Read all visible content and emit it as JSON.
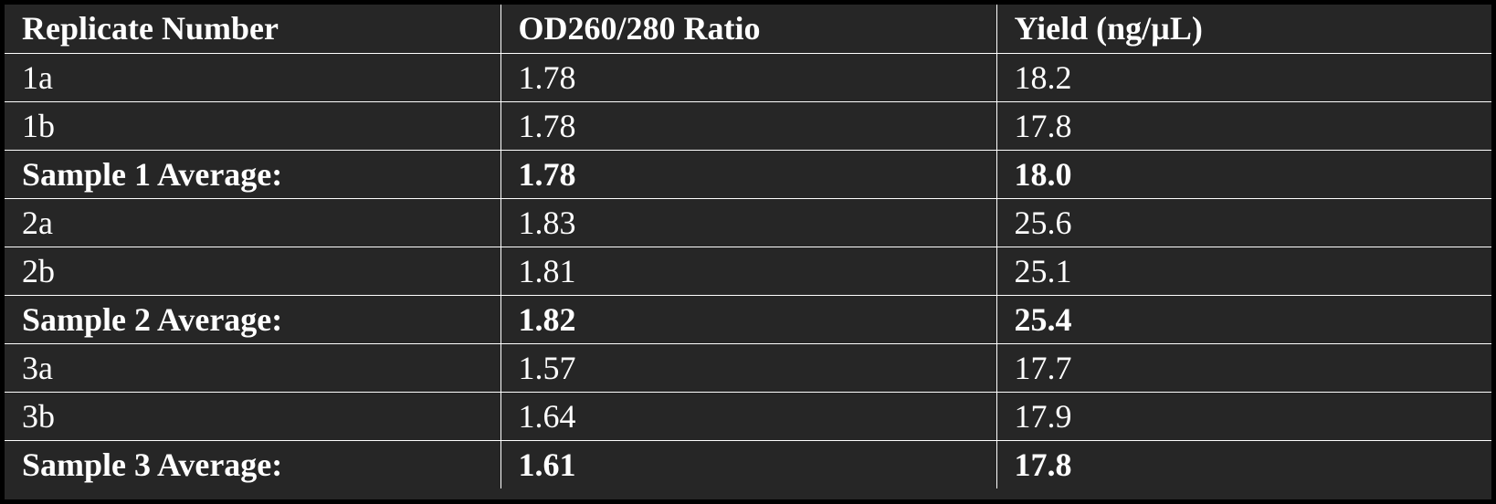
{
  "table": {
    "headers": [
      "Replicate Number",
      "OD260/280 Ratio",
      "Yield (ng/µL)"
    ],
    "rows": [
      {
        "cells": [
          "1a",
          "1.78",
          "18.2"
        ],
        "is_average": false
      },
      {
        "cells": [
          "1b",
          "1.78",
          "17.8"
        ],
        "is_average": false
      },
      {
        "cells": [
          "Sample 1 Average:",
          "1.78",
          "18.0"
        ],
        "is_average": true
      },
      {
        "cells": [
          "2a",
          "1.83",
          "25.6"
        ],
        "is_average": false
      },
      {
        "cells": [
          "2b",
          "1.81",
          "25.1"
        ],
        "is_average": false
      },
      {
        "cells": [
          "Sample 2 Average:",
          "1.82",
          "25.4"
        ],
        "is_average": true
      },
      {
        "cells": [
          "3a",
          "1.57",
          "17.7"
        ],
        "is_average": false
      },
      {
        "cells": [
          "3b",
          "1.64",
          "17.9"
        ],
        "is_average": false
      },
      {
        "cells": [
          "Sample 3 Average:",
          "1.61",
          "17.8"
        ],
        "is_average": true
      }
    ]
  },
  "colors": {
    "background": "#262626",
    "border": "#ffffff",
    "text": "#ffffff",
    "frame": "#000000"
  }
}
